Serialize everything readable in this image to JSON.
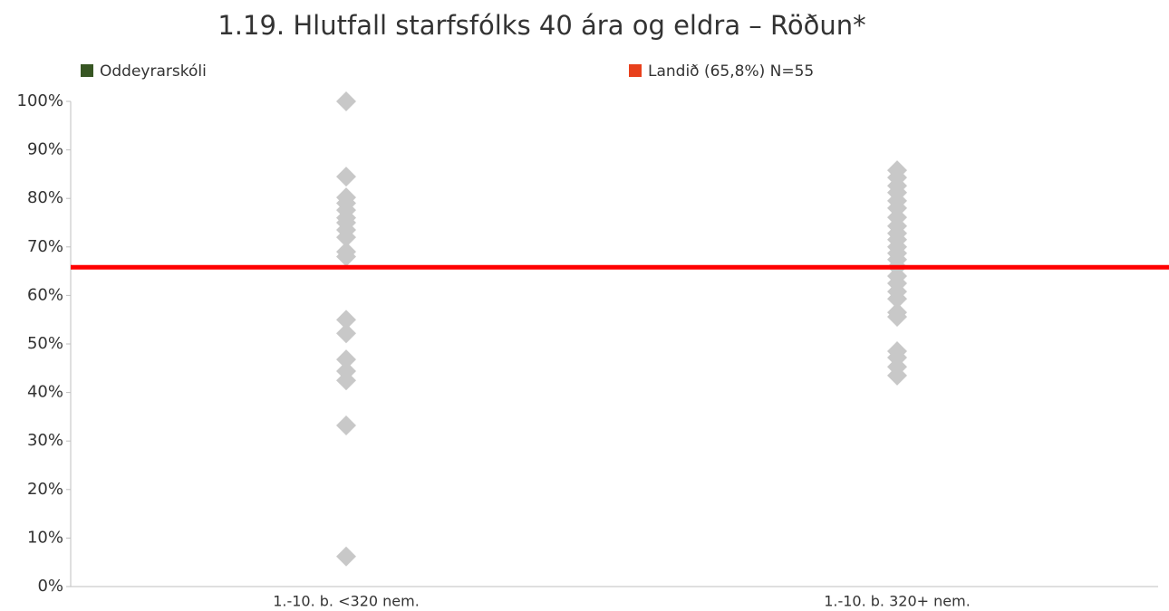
{
  "chart_data": {
    "type": "strip",
    "title": "1.19. Hlutfall starfsfólks 40 ára og eldra – Röðun*",
    "legend": [
      {
        "name": "Oddeyrarskóli",
        "color": "#375623"
      },
      {
        "name": "Landið (65,8%) N=55",
        "color": "#e8401c"
      }
    ],
    "reference_line": {
      "value": 65.8,
      "color": "#ff0000"
    },
    "categories": [
      "1.-10. b. <320 nem.",
      "1.-10. b. 320+ nem."
    ],
    "color": "#c8c8c8",
    "values": [
      [
        100,
        84.5,
        80.2,
        79,
        77.6,
        76,
        75,
        73.5,
        72,
        69,
        68,
        55,
        52.2,
        46.8,
        44.4,
        42.5,
        33.2,
        6.2
      ],
      [
        85.8,
        84.3,
        82.6,
        81.2,
        79.5,
        78,
        76.1,
        74.3,
        72.8,
        71.5,
        70,
        68.7,
        67.4,
        65.9,
        64,
        62.5,
        60.8,
        59.3,
        56.5,
        55.6,
        48.5,
        47.2,
        45.3,
        43.5
      ]
    ],
    "ylim": [
      0,
      100
    ],
    "yticks": [
      {
        "value": 0,
        "label": "0%"
      },
      {
        "value": 10,
        "label": "10%"
      },
      {
        "value": 20,
        "label": "20%"
      },
      {
        "value": 30,
        "label": "30%"
      },
      {
        "value": 40,
        "label": "40%"
      },
      {
        "value": 50,
        "label": "50%"
      },
      {
        "value": 60,
        "label": "60%"
      },
      {
        "value": 70,
        "label": "70%"
      },
      {
        "value": 80,
        "label": "80%"
      },
      {
        "value": 90,
        "label": "90%"
      },
      {
        "value": 100,
        "label": "100%"
      }
    ]
  }
}
